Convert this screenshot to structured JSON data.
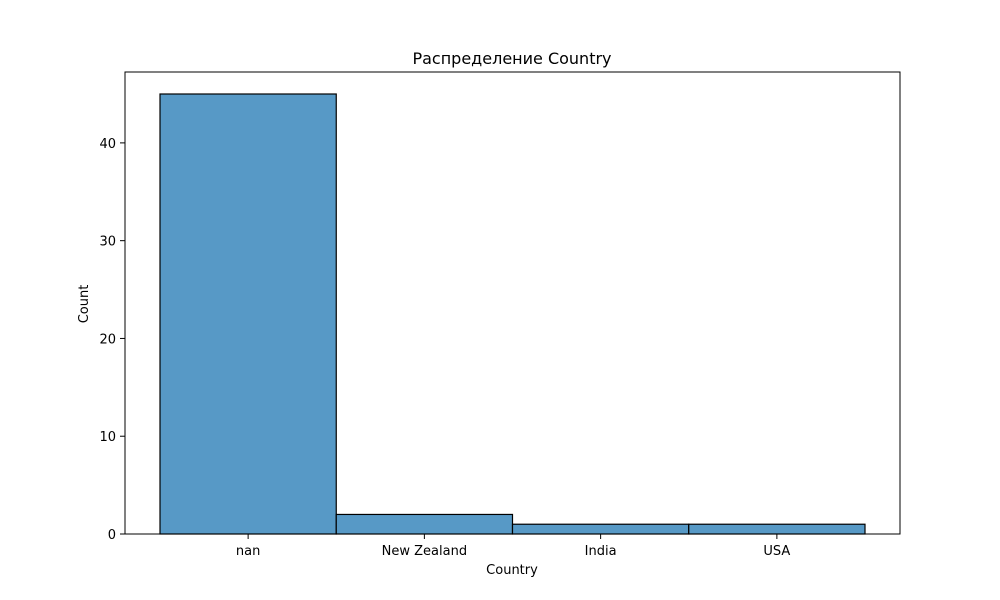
{
  "chart_data": {
    "type": "bar",
    "title": "Распределение Country",
    "xlabel": "Country",
    "ylabel": "Count",
    "categories": [
      "nan",
      "New Zealand",
      "India",
      "USA"
    ],
    "values": [
      45,
      2,
      1,
      1
    ],
    "ylim": [
      0,
      47.25
    ],
    "yticks": [
      0,
      10,
      20,
      30,
      40
    ],
    "bar_color": "#5799c6",
    "edge_color": "#000000",
    "grid": false,
    "legend": "none"
  }
}
